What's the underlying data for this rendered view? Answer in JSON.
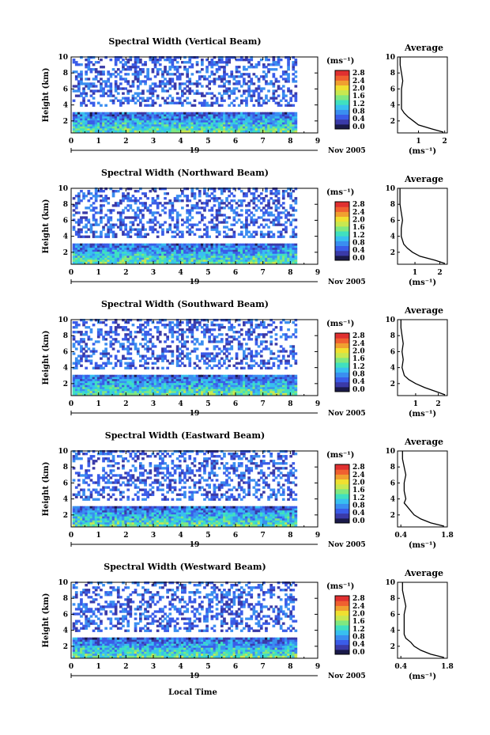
{
  "figure": {
    "xlabel": "Local Time",
    "colorscale": [
      "#1a1a4a",
      "#3a3aa8",
      "#3a5ce8",
      "#3a8ef0",
      "#38c0f0",
      "#40e0c0",
      "#80e880",
      "#c8e850",
      "#f0e030",
      "#f0a030",
      "#f06030",
      "#e03030"
    ]
  },
  "chart_data": [
    {
      "type": "heatmap",
      "title": "Spectral Width (Vertical Beam)",
      "ylabel": "Height (km)",
      "xlim": [
        0,
        9
      ],
      "ylim": [
        0.5,
        10
      ],
      "x_ticks": [
        "0",
        "1",
        "2",
        "3",
        "4",
        "5",
        "6",
        "7",
        "8",
        "9"
      ],
      "y_ticks": [
        "2",
        "4",
        "6",
        "8",
        "10"
      ],
      "date_day": "19",
      "date_month_year": "Nov 2005",
      "colorbar": {
        "unit": "(ms⁻¹)",
        "ticks": [
          "0.0",
          "0.4",
          "0.8",
          "1.2",
          "1.6",
          "2.0",
          "2.4",
          "2.8"
        ],
        "range": [
          0,
          2.8
        ]
      },
      "average": {
        "title": "Average",
        "xlabel": "(ms⁻¹)",
        "xlim": [
          0.2,
          2.1
        ],
        "x_ticks": [
          "1",
          "2"
        ],
        "x_tick_values": [
          1,
          2
        ],
        "heights": [
          0.6,
          1.0,
          1.5,
          2.0,
          2.5,
          3.0,
          3.5,
          4.0,
          5.0,
          6.0,
          7.0,
          8.0,
          9.0,
          10.0
        ],
        "values": [
          1.95,
          1.5,
          1.0,
          0.8,
          0.6,
          0.45,
          0.35,
          0.35,
          0.35,
          0.35,
          0.4,
          0.35,
          0.3,
          0.3
        ]
      }
    },
    {
      "type": "heatmap",
      "title": "Spectral Width (Northward Beam)",
      "ylabel": "Height (km)",
      "xlim": [
        0,
        9
      ],
      "ylim": [
        0.5,
        10
      ],
      "x_ticks": [
        "0",
        "1",
        "2",
        "3",
        "4",
        "5",
        "6",
        "7",
        "8",
        "9"
      ],
      "y_ticks": [
        "2",
        "4",
        "6",
        "8",
        "10"
      ],
      "date_day": "19",
      "date_month_year": "Nov 2005",
      "colorbar": {
        "unit": "(ms⁻¹)",
        "ticks": [
          "0.0",
          "0.4",
          "0.8",
          "1.2",
          "1.6",
          "2.0",
          "2.4",
          "2.8"
        ],
        "range": [
          0,
          2.8
        ]
      },
      "average": {
        "title": "Average",
        "xlabel": "(ms⁻¹)",
        "xlim": [
          0.3,
          2.3
        ],
        "x_ticks": [
          "1",
          "2"
        ],
        "x_tick_values": [
          1,
          2
        ],
        "heights": [
          0.6,
          1.0,
          1.5,
          2.0,
          2.5,
          3.0,
          3.5,
          4.0,
          5.0,
          6.0,
          7.0,
          8.0,
          9.0,
          10.0
        ],
        "values": [
          2.2,
          1.8,
          1.2,
          0.9,
          0.7,
          0.55,
          0.5,
          0.45,
          0.45,
          0.5,
          0.45,
          0.4,
          0.4,
          0.4
        ]
      }
    },
    {
      "type": "heatmap",
      "title": "Spectral Width (Southward Beam)",
      "ylabel": "Height (km)",
      "xlim": [
        0,
        9
      ],
      "ylim": [
        0.5,
        10
      ],
      "x_ticks": [
        "0",
        "1",
        "2",
        "3",
        "4",
        "5",
        "6",
        "7",
        "8",
        "9"
      ],
      "y_ticks": [
        "2",
        "4",
        "6",
        "8",
        "10"
      ],
      "date_day": "19",
      "date_month_year": "Nov 2005",
      "colorbar": {
        "unit": "(ms⁻¹)",
        "ticks": [
          "0.0",
          "0.4",
          "0.8",
          "1.2",
          "1.6",
          "2.0",
          "2.4",
          "2.8"
        ],
        "range": [
          0,
          2.8
        ]
      },
      "average": {
        "title": "Average",
        "xlabel": "(ms⁻¹)",
        "xlim": [
          0.2,
          2.4
        ],
        "x_ticks": [
          "1",
          "2"
        ],
        "x_tick_values": [
          1,
          2
        ],
        "heights": [
          0.6,
          1.0,
          1.5,
          2.0,
          2.5,
          3.0,
          3.5,
          4.0,
          5.0,
          6.0,
          7.0,
          8.0,
          9.0,
          10.0
        ],
        "values": [
          2.3,
          1.9,
          1.4,
          1.0,
          0.7,
          0.5,
          0.45,
          0.4,
          0.45,
          0.4,
          0.45,
          0.4,
          0.35,
          0.35
        ]
      }
    },
    {
      "type": "heatmap",
      "title": "Spectral Width (Eastward Beam)",
      "ylabel": "Height (km)",
      "xlim": [
        0,
        9
      ],
      "ylim": [
        0.5,
        10
      ],
      "x_ticks": [
        "0",
        "1",
        "2",
        "3",
        "4",
        "5",
        "6",
        "7",
        "8",
        "9"
      ],
      "y_ticks": [
        "2",
        "4",
        "6",
        "8",
        "10"
      ],
      "date_day": "19",
      "date_month_year": "Nov 2005",
      "colorbar": {
        "unit": "(ms⁻¹)",
        "ticks": [
          "0.0",
          "0.4",
          "0.8",
          "1.2",
          "1.6",
          "2.0",
          "2.4",
          "2.8"
        ],
        "range": [
          0,
          2.8
        ]
      },
      "average": {
        "title": "Average",
        "xlabel": "(ms⁻¹)",
        "xlim": [
          0.3,
          1.8
        ],
        "x_ticks": [
          "0.4",
          "1.8"
        ],
        "x_tick_values": [
          0.4,
          1.8
        ],
        "heights": [
          0.6,
          1.0,
          1.5,
          2.0,
          2.5,
          3.0,
          3.5,
          4.0,
          5.0,
          6.0,
          7.0,
          8.0,
          9.0,
          10.0
        ],
        "values": [
          1.7,
          1.3,
          1.0,
          0.8,
          0.7,
          0.6,
          0.5,
          0.55,
          0.5,
          0.5,
          0.55,
          0.5,
          0.45,
          0.45
        ]
      }
    },
    {
      "type": "heatmap",
      "title": "Spectral Width (Westward Beam)",
      "ylabel": "Height (km)",
      "xlim": [
        0,
        9
      ],
      "ylim": [
        0.5,
        10
      ],
      "x_ticks": [
        "0",
        "1",
        "2",
        "3",
        "4",
        "5",
        "6",
        "7",
        "8",
        "9"
      ],
      "y_ticks": [
        "2",
        "4",
        "6",
        "8",
        "10"
      ],
      "date_day": "19",
      "date_month_year": "Nov 2005",
      "colorbar": {
        "unit": "(ms⁻¹)",
        "ticks": [
          "0.0",
          "0.4",
          "0.8",
          "1.2",
          "1.6",
          "2.0",
          "2.4",
          "2.8"
        ],
        "range": [
          0,
          2.8
        ]
      },
      "average": {
        "title": "Average",
        "xlabel": "(ms⁻¹)",
        "xlim": [
          0.3,
          1.8
        ],
        "x_ticks": [
          "0.4",
          "1.8"
        ],
        "x_tick_values": [
          0.4,
          1.8
        ],
        "heights": [
          0.6,
          1.0,
          1.5,
          2.0,
          2.5,
          3.0,
          3.5,
          4.0,
          5.0,
          6.0,
          7.0,
          8.0,
          9.0,
          10.0
        ],
        "values": [
          1.7,
          1.3,
          1.0,
          0.8,
          0.7,
          0.55,
          0.5,
          0.5,
          0.5,
          0.5,
          0.55,
          0.5,
          0.45,
          0.45
        ]
      }
    }
  ]
}
